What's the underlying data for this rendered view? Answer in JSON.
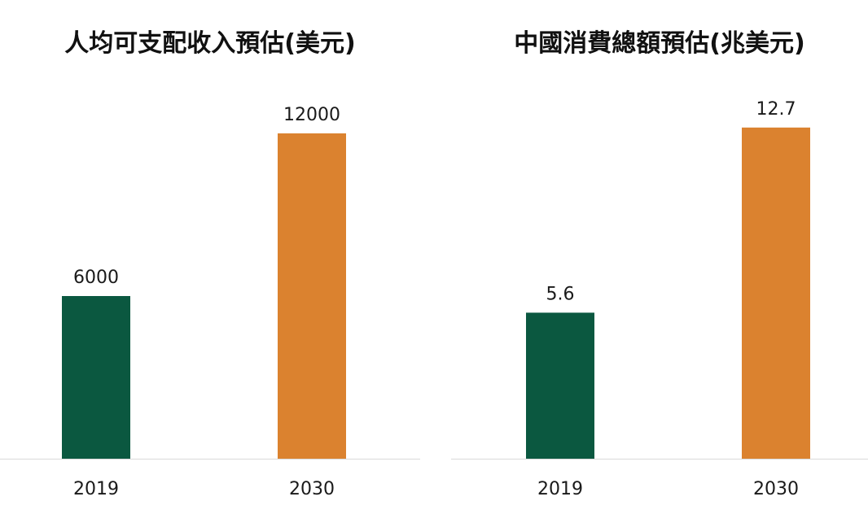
{
  "chart_data": [
    {
      "type": "bar",
      "title": "人均可支配收入預估(美元)",
      "categories": [
        "2019",
        "2030"
      ],
      "values": [
        6000,
        12000
      ],
      "value_labels": [
        "6000",
        "12000"
      ],
      "bar_colors": [
        "#0b5840",
        "#db822f"
      ],
      "ylim": [
        0,
        12600
      ],
      "xlabel": "",
      "ylabel": "",
      "grid": false,
      "legend": "none"
    },
    {
      "type": "bar",
      "title": "中國消費總額預估(兆美元)",
      "categories": [
        "2019",
        "2030"
      ],
      "values": [
        5.6,
        12.7
      ],
      "value_labels": [
        "5.6",
        "12.7"
      ],
      "bar_colors": [
        "#0b5840",
        "#db822f"
      ],
      "ylim": [
        0,
        13.1
      ],
      "xlabel": "",
      "ylabel": "",
      "grid": false,
      "legend": "none"
    }
  ],
  "colors": {
    "baseline": "#d9d9d9",
    "text": "#1a1a1a"
  }
}
